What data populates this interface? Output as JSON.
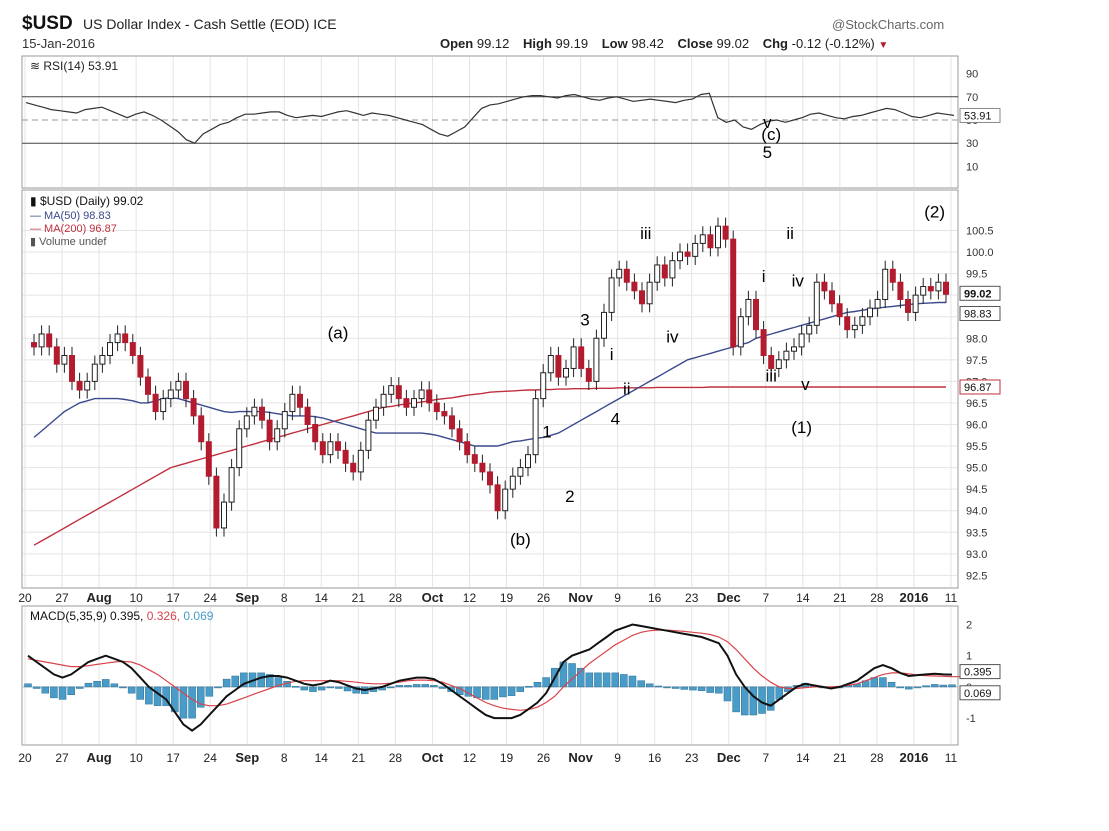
{
  "header": {
    "symbol": "$USD",
    "name": "US Dollar Index - Cash Settle (EOD) ICE",
    "date": "15-Jan-2016",
    "credit": "@StockCharts.com",
    "open_label": "Open",
    "open": "99.12",
    "high_label": "High",
    "high": "99.19",
    "low_label": "Low",
    "low": "98.42",
    "close_label": "Close",
    "close": "99.02",
    "chg_label": "Chg",
    "chg": "-0.12 (-0.12%)",
    "down_arrow": "▼"
  },
  "colors": {
    "up_candle": "#ffffff",
    "down_candle": "#b31b2e",
    "candle_outline": "#222222",
    "ma50": "#3a4a8c",
    "ma200": "#c0303f",
    "rsi": "#333333",
    "macd_line": "#111111",
    "signal_line": "#d9444b",
    "histogram": "#4a9cc8",
    "grid": "#e4e4e4",
    "panel_border": "#999999",
    "price_tag_close": "#ffffff"
  },
  "chart_data": [
    {
      "type": "line",
      "panel": "rsi",
      "legend": "RSI(14) 53.91",
      "y_ticks": [
        "90",
        "70",
        "50",
        "30",
        "10"
      ],
      "ylim": [
        0,
        100
      ],
      "reference_lines": [
        70,
        30
      ],
      "last_value_tag": "53.91",
      "values": [
        65,
        63,
        61,
        59,
        58,
        57,
        56,
        59,
        60,
        61,
        58,
        55,
        52,
        55,
        57,
        54,
        50,
        45,
        40,
        33,
        30,
        38,
        42,
        46,
        48,
        52,
        55,
        55,
        56,
        57,
        57,
        54,
        52,
        53,
        54,
        53,
        55,
        57,
        58,
        56,
        54,
        56,
        55,
        54,
        52,
        50,
        48,
        46,
        42,
        38,
        36,
        40,
        44,
        52,
        60,
        63,
        64,
        66,
        68,
        70,
        71,
        71,
        70,
        69,
        71,
        72,
        70,
        68,
        67,
        69,
        70,
        68,
        66,
        67,
        68,
        67,
        66,
        65,
        67,
        68,
        72,
        73,
        52,
        48,
        50,
        44,
        42,
        46,
        49,
        50,
        48,
        50,
        52,
        55,
        56,
        54,
        52,
        51,
        53,
        54,
        56,
        58,
        60,
        59,
        56,
        53,
        52,
        54,
        56,
        55,
        54
      ]
    },
    {
      "type": "candlestick",
      "panel": "price",
      "legend": [
        "$USD (Daily) 99.02",
        "MA(50) 98.83",
        "MA(200) 96.87",
        "Volume undef"
      ],
      "y_ticks": [
        "100.5",
        "100.0",
        "99.5",
        "99.0",
        "98.5",
        "98.0",
        "97.5",
        "97.0",
        "96.5",
        "96.0",
        "95.5",
        "95.0",
        "94.5",
        "94.0",
        "93.5",
        "93.0",
        "92.5"
      ],
      "ylim": [
        92.3,
        101.3
      ],
      "x_tick_labels": [
        "20",
        "27",
        "Aug",
        "10",
        "17",
        "24",
        "Sep",
        "8",
        "14",
        "21",
        "28",
        "Oct",
        "12",
        "19",
        "26",
        "Nov",
        "9",
        "16",
        "23",
        "Dec",
        "7",
        "14",
        "21",
        "28",
        "2016",
        "11"
      ],
      "price_tags": [
        "99.02",
        "98.83",
        "96.87"
      ],
      "closes": [
        97.8,
        98.1,
        97.8,
        97.4,
        97.6,
        97.0,
        96.8,
        97.0,
        97.4,
        97.6,
        97.9,
        98.1,
        97.9,
        97.6,
        97.1,
        96.7,
        96.3,
        96.6,
        96.8,
        97.0,
        96.6,
        96.2,
        95.6,
        94.8,
        93.6,
        94.2,
        95.0,
        95.9,
        96.2,
        96.4,
        96.1,
        95.6,
        95.9,
        96.3,
        96.7,
        96.4,
        96.0,
        95.6,
        95.3,
        95.6,
        95.4,
        95.1,
        94.9,
        95.4,
        96.1,
        96.4,
        96.7,
        96.9,
        96.6,
        96.4,
        96.6,
        96.8,
        96.5,
        96.3,
        96.2,
        95.9,
        95.6,
        95.3,
        95.1,
        94.9,
        94.6,
        94.0,
        94.5,
        94.8,
        95.0,
        95.3,
        96.6,
        97.2,
        97.6,
        97.1,
        97.3,
        97.8,
        97.3,
        97.0,
        98.0,
        98.6,
        99.4,
        99.6,
        99.3,
        99.1,
        98.8,
        99.3,
        99.7,
        99.4,
        99.8,
        100.0,
        99.9,
        100.2,
        100.4,
        100.1,
        100.6,
        100.3,
        97.8,
        98.5,
        98.9,
        98.2,
        97.6,
        97.3,
        97.5,
        97.7,
        97.8,
        98.1,
        98.3,
        99.3,
        99.1,
        98.8,
        98.5,
        98.2,
        98.3,
        98.5,
        98.7,
        98.9,
        99.6,
        99.3,
        98.9,
        98.6,
        99.0,
        99.2,
        99.1,
        99.3,
        99.02
      ],
      "ma50": [
        95.7,
        95.85,
        96.0,
        96.15,
        96.3,
        96.4,
        96.5,
        96.55,
        96.6,
        96.6,
        96.6,
        96.6,
        96.58,
        96.55,
        96.5,
        96.5,
        96.55,
        96.6,
        96.62,
        96.6,
        96.55,
        96.5,
        96.45,
        96.4,
        96.35,
        96.3,
        96.28,
        96.3,
        96.3,
        96.3,
        96.3,
        96.28,
        96.25,
        96.22,
        96.2,
        96.2,
        96.2,
        96.18,
        96.15,
        96.1,
        96.05,
        96.0,
        95.95,
        95.9,
        95.85,
        95.8,
        95.8,
        95.8,
        95.8,
        95.8,
        95.8,
        95.8,
        95.78,
        95.75,
        95.7,
        95.65,
        95.6,
        95.55,
        95.5,
        95.5,
        95.5,
        95.5,
        95.55,
        95.6,
        95.62,
        95.65,
        95.68,
        95.7,
        95.75,
        95.8,
        95.9,
        96.0,
        96.1,
        96.2,
        96.3,
        96.4,
        96.5,
        96.6,
        96.7,
        96.8,
        96.9,
        97.0,
        97.1,
        97.2,
        97.3,
        97.4,
        97.5,
        97.55,
        97.6,
        97.65,
        97.7,
        97.75,
        97.8,
        97.85,
        97.9,
        98.0,
        98.05,
        98.1,
        98.15,
        98.2,
        98.25,
        98.3,
        98.35,
        98.4,
        98.45,
        98.5,
        98.55,
        98.6,
        98.62,
        98.65,
        98.68,
        98.7,
        98.72,
        98.74,
        98.76,
        98.78,
        98.8,
        98.81,
        98.82,
        98.83,
        98.83
      ],
      "ma200": [
        93.2,
        93.3,
        93.4,
        93.5,
        93.6,
        93.7,
        93.8,
        93.9,
        94.0,
        94.1,
        94.2,
        94.3,
        94.4,
        94.5,
        94.6,
        94.7,
        94.8,
        94.9,
        95.0,
        95.05,
        95.1,
        95.15,
        95.2,
        95.25,
        95.3,
        95.35,
        95.4,
        95.45,
        95.5,
        95.55,
        95.6,
        95.65,
        95.7,
        95.75,
        95.8,
        95.85,
        95.9,
        95.95,
        96.0,
        96.05,
        96.1,
        96.15,
        96.2,
        96.25,
        96.3,
        96.35,
        96.4,
        96.42,
        96.45,
        96.48,
        96.5,
        96.52,
        96.55,
        96.58,
        96.6,
        96.62,
        96.65,
        96.68,
        96.7,
        96.72,
        96.75,
        96.76,
        96.77,
        96.78,
        96.79,
        96.8,
        96.8,
        96.81,
        96.81,
        96.82,
        96.82,
        96.83,
        96.83,
        96.83,
        96.84,
        96.84,
        96.84,
        96.85,
        96.85,
        96.85,
        96.85,
        96.85,
        96.86,
        96.86,
        96.86,
        96.86,
        96.86,
        96.86,
        96.86,
        96.87,
        96.87,
        96.87,
        96.87,
        96.87,
        96.87,
        96.87,
        96.87,
        96.87,
        96.87,
        96.87,
        96.87,
        96.87,
        96.87,
        96.87,
        96.87,
        96.87,
        96.87,
        96.87,
        96.87,
        96.87,
        96.87,
        96.87,
        96.87,
        96.87,
        96.87,
        96.87,
        96.87,
        96.87,
        96.87,
        96.87,
        96.87
      ],
      "annotations": [
        {
          "text": "(a)",
          "x": 40,
          "y": 98.0
        },
        {
          "text": "(b)",
          "x": 64,
          "y": 93.2
        },
        {
          "text": "1",
          "x": 67.5,
          "y": 95.7
        },
        {
          "text": "2",
          "x": 70.5,
          "y": 94.2
        },
        {
          "text": "3",
          "x": 72.5,
          "y": 98.3
        },
        {
          "text": "i",
          "x": 76,
          "y": 97.5
        },
        {
          "text": "ii",
          "x": 78,
          "y": 96.7
        },
        {
          "text": "4",
          "x": 76.5,
          "y": 96.0
        },
        {
          "text": "iii",
          "x": 80.5,
          "y": 100.3
        },
        {
          "text": "iv",
          "x": 84,
          "y": 97.9
        },
        {
          "text": "5",
          "x": 96.5,
          "y": 102.0
        },
        {
          "text": "v",
          "x": 96.5,
          "y": 101.5
        },
        {
          "text": "ii",
          "x": 99.5,
          "y": 100.3
        },
        {
          "text": "i",
          "x": 96,
          "y": 99.3
        },
        {
          "text": "iv",
          "x": 100.5,
          "y": 99.2
        },
        {
          "text": "iii",
          "x": 97,
          "y": 97.0
        },
        {
          "text": "v",
          "x": 101.5,
          "y": 96.8
        },
        {
          "text": "(1)",
          "x": 101,
          "y": 95.8
        },
        {
          "text": "(2)",
          "x": 118.5,
          "y": 100.8
        },
        {
          "text": "(c)",
          "x": 97,
          "y": 101.7
        }
      ]
    },
    {
      "type": "line",
      "panel": "macd",
      "legend": [
        "MACD(5,35,9) 0.395,",
        "0.326,",
        "0.069"
      ],
      "y_ticks": [
        "2",
        "1",
        "0",
        "-1"
      ],
      "ylim": [
        -1.7,
        2.4
      ],
      "last_value_tags": [
        "0.395",
        "0.069"
      ],
      "macd": [
        1.0,
        0.8,
        0.6,
        0.4,
        0.3,
        0.4,
        0.6,
        0.8,
        0.9,
        1.0,
        0.9,
        0.8,
        0.6,
        0.3,
        0.0,
        -0.2,
        -0.4,
        -0.8,
        -1.2,
        -1.4,
        -1.2,
        -0.9,
        -0.6,
        -0.3,
        -0.1,
        0.1,
        0.2,
        0.3,
        0.35,
        0.35,
        0.3,
        0.2,
        0.1,
        0.05,
        0.1,
        0.2,
        0.15,
        0.05,
        -0.05,
        -0.1,
        -0.05,
        0.0,
        0.1,
        0.2,
        0.25,
        0.3,
        0.3,
        0.25,
        0.1,
        -0.1,
        -0.3,
        -0.5,
        -0.7,
        -0.9,
        -1.0,
        -1.0,
        -1.0,
        -0.9,
        -0.7,
        -0.5,
        -0.2,
        0.3,
        0.8,
        1.0,
        1.1,
        1.2,
        1.4,
        1.6,
        1.8,
        1.9,
        2.0,
        1.95,
        1.9,
        1.85,
        1.8,
        1.75,
        1.7,
        1.65,
        1.6,
        1.5,
        1.4,
        1.0,
        0.4,
        0.0,
        -0.3,
        -0.5,
        -0.6,
        -0.4,
        -0.2,
        0.0,
        0.1,
        0.05,
        0.0,
        -0.05,
        0.0,
        0.1,
        0.2,
        0.4,
        0.6,
        0.7,
        0.6,
        0.45,
        0.35,
        0.38,
        0.4,
        0.42,
        0.4,
        0.395
      ],
      "signal": [
        0.9,
        0.85,
        0.8,
        0.75,
        0.7,
        0.65,
        0.65,
        0.68,
        0.72,
        0.76,
        0.8,
        0.82,
        0.8,
        0.7,
        0.55,
        0.4,
        0.2,
        0.0,
        -0.2,
        -0.4,
        -0.55,
        -0.6,
        -0.6,
        -0.55,
        -0.45,
        -0.35,
        -0.25,
        -0.15,
        -0.05,
        0.05,
        0.12,
        0.18,
        0.2,
        0.2,
        0.2,
        0.2,
        0.2,
        0.18,
        0.15,
        0.12,
        0.1,
        0.1,
        0.12,
        0.15,
        0.2,
        0.22,
        0.22,
        0.2,
        0.15,
        0.05,
        -0.05,
        -0.2,
        -0.35,
        -0.5,
        -0.6,
        -0.68,
        -0.72,
        -0.75,
        -0.72,
        -0.65,
        -0.5,
        -0.3,
        0.0,
        0.25,
        0.5,
        0.75,
        0.95,
        1.15,
        1.35,
        1.5,
        1.65,
        1.75,
        1.8,
        1.82,
        1.82,
        1.8,
        1.78,
        1.75,
        1.72,
        1.68,
        1.6,
        1.45,
        1.2,
        0.9,
        0.6,
        0.35,
        0.15,
        0.0,
        -0.05,
        -0.05,
        -0.02,
        0.0,
        0.0,
        0.0,
        0.02,
        0.05,
        0.1,
        0.2,
        0.3,
        0.4,
        0.45,
        0.45,
        0.42,
        0.38,
        0.36,
        0.35,
        0.34,
        0.33,
        0.326
      ],
      "histogram": [
        0.1,
        -0.05,
        -0.2,
        -0.35,
        -0.4,
        -0.25,
        -0.05,
        0.12,
        0.18,
        0.24,
        0.1,
        -0.02,
        -0.2,
        -0.4,
        -0.55,
        -0.6,
        -0.6,
        -0.8,
        -1.0,
        -1.0,
        -0.65,
        -0.3,
        0.0,
        0.25,
        0.35,
        0.45,
        0.45,
        0.45,
        0.4,
        0.3,
        0.18,
        0.02,
        -0.1,
        -0.15,
        -0.1,
        0.0,
        -0.05,
        -0.13,
        -0.2,
        -0.22,
        -0.15,
        -0.1,
        -0.02,
        0.05,
        0.05,
        0.08,
        0.08,
        0.05,
        -0.05,
        -0.15,
        -0.25,
        -0.3,
        -0.35,
        -0.4,
        -0.4,
        -0.32,
        -0.28,
        -0.15,
        0.02,
        0.15,
        0.3,
        0.6,
        0.8,
        0.75,
        0.6,
        0.45,
        0.45,
        0.45,
        0.45,
        0.4,
        0.35,
        0.2,
        0.1,
        0.03,
        -0.02,
        -0.05,
        -0.08,
        -0.1,
        -0.12,
        -0.18,
        -0.2,
        -0.45,
        -0.8,
        -0.9,
        -0.9,
        -0.85,
        -0.75,
        -0.4,
        -0.15,
        0.05,
        0.12,
        0.05,
        0.0,
        -0.05,
        -0.02,
        0.05,
        0.1,
        0.2,
        0.3,
        0.3,
        0.15,
        0.0,
        -0.07,
        0.0,
        0.04,
        0.08,
        0.06,
        0.069
      ]
    }
  ]
}
